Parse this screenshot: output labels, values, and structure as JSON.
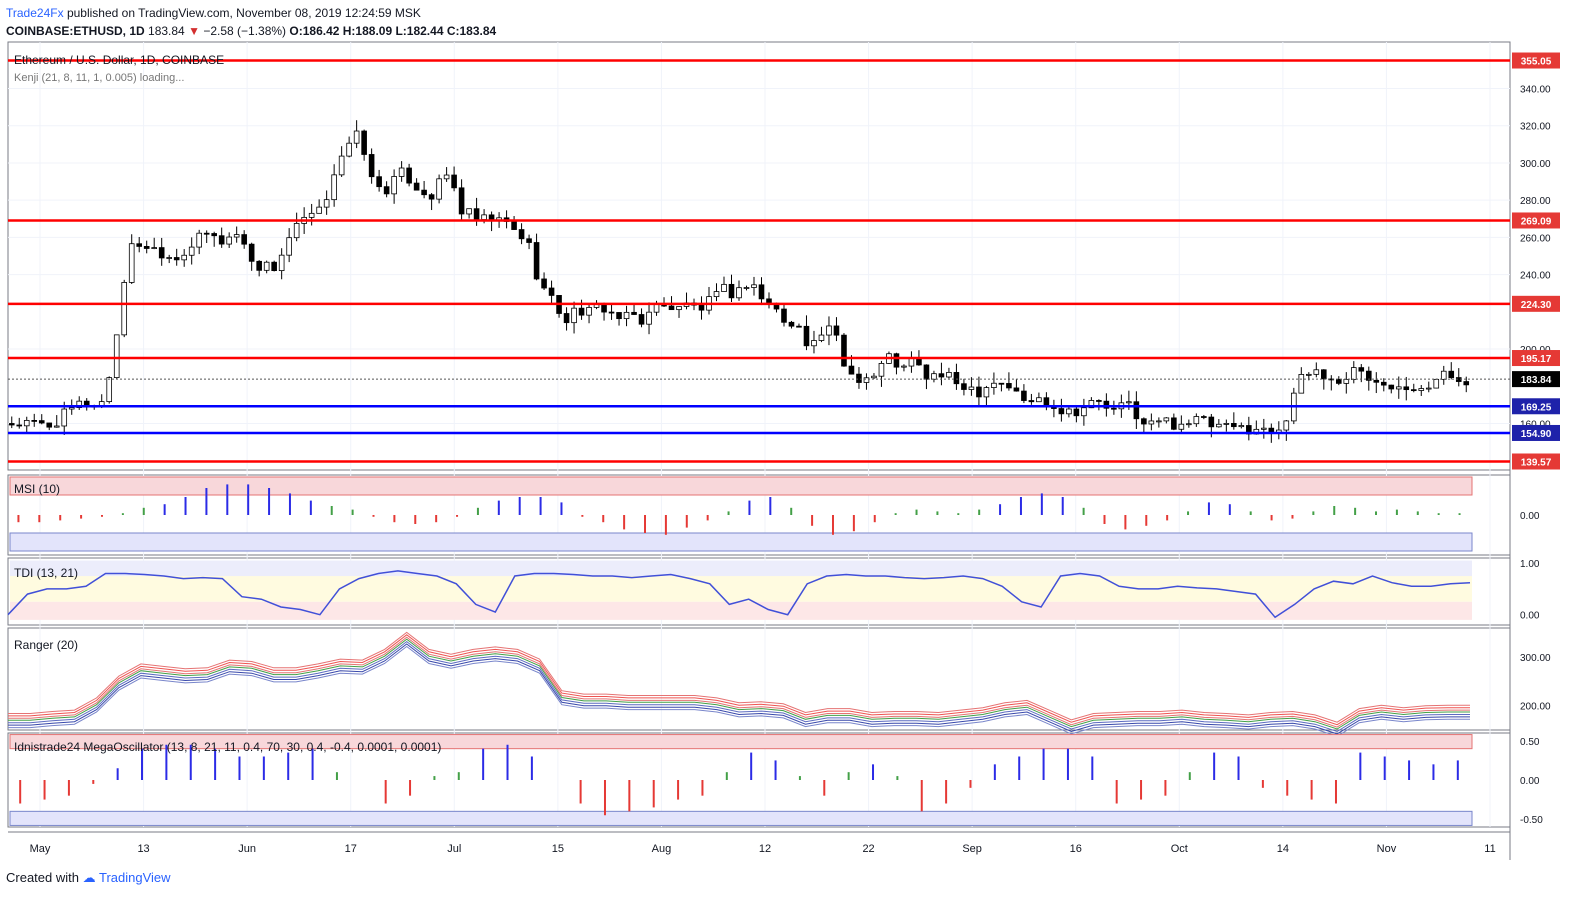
{
  "header": {
    "author": "Trade24Fx",
    "published_text": "published on TradingView.com, November 08, 2019 12:24:59 MSK",
    "symbol_line": "COINBASE:ETHUSD, 1D",
    "last": "183.84",
    "change_arrow": "▼",
    "change": "−2.58 (−1.38%)",
    "ohlc": "O:186.42 H:188.09 L:182.44 C:183.84"
  },
  "footer": {
    "created_with": "Created with",
    "brand": "TradingView"
  },
  "colors": {
    "red_level": "#ff0000",
    "blue_level": "#0000ff",
    "bull": "#ffffff",
    "bear": "#000000"
  },
  "chart_data": [
    {
      "type": "candlestick",
      "title": "Ethereum / U.S. Dollar, 1D, COINBASE",
      "indicator_label": "Kenji (21, 8, 11, 1, 0.005) loading...",
      "x_tick_labels": [
        "May",
        "13",
        "Jun",
        "17",
        "Jul",
        "15",
        "Aug",
        "12",
        "22",
        "Sep",
        "16",
        "Oct",
        "14",
        "Nov",
        "11"
      ],
      "y_tick_labels": [
        "340.00",
        "320.00",
        "300.00",
        "280.00",
        "260.00",
        "240.00",
        "200.00",
        "160.00"
      ],
      "ylim": [
        135,
        365
      ],
      "resistance_levels": [
        "355.05",
        "269.09",
        "224.30",
        "195.17",
        "139.57"
      ],
      "support_levels": [
        "169.25",
        "154.90"
      ],
      "last_price_label": "183.84",
      "close_path": [
        [
          0,
          160
        ],
        [
          10,
          159
        ],
        [
          18,
          171
        ],
        [
          23,
          170
        ],
        [
          26,
          192
        ],
        [
          30,
          253
        ],
        [
          33,
          257
        ],
        [
          38,
          253
        ],
        [
          42,
          249
        ],
        [
          46,
          255
        ],
        [
          50,
          262
        ],
        [
          54,
          258
        ],
        [
          58,
          262
        ],
        [
          63,
          245
        ],
        [
          68,
          244
        ],
        [
          72,
          262
        ],
        [
          76,
          270
        ],
        [
          80,
          274
        ],
        [
          84,
          302
        ],
        [
          88,
          311
        ],
        [
          90,
          318
        ],
        [
          92,
          292
        ],
        [
          96,
          285
        ],
        [
          101,
          295
        ],
        [
          104,
          288
        ],
        [
          108,
          282
        ],
        [
          113,
          296
        ],
        [
          115,
          276
        ],
        [
          121,
          268
        ],
        [
          123,
          270
        ],
        [
          127,
          268
        ],
        [
          133,
          258
        ],
        [
          136,
          236
        ],
        [
          138,
          230
        ],
        [
          141,
          221
        ],
        [
          143,
          216
        ],
        [
          146,
          222
        ],
        [
          149,
          219
        ],
        [
          152,
          224
        ],
        [
          154,
          220
        ],
        [
          158,
          215
        ],
        [
          160,
          220
        ],
        [
          162,
          211
        ],
        [
          165,
          226
        ],
        [
          167,
          221
        ],
        [
          171,
          224
        ],
        [
          175,
          223
        ],
        [
          178,
          222
        ],
        [
          184,
          232
        ],
        [
          187,
          229
        ],
        [
          189,
          236
        ],
        [
          192,
          234
        ],
        [
          194,
          224
        ],
        [
          197,
          223
        ],
        [
          200,
          210
        ],
        [
          203,
          214
        ],
        [
          206,
          200
        ],
        [
          208,
          208
        ],
        [
          212,
          210
        ],
        [
          215,
          189
        ],
        [
          218,
          185
        ],
        [
          222,
          185
        ],
        [
          226,
          196
        ],
        [
          230,
          189
        ],
        [
          232,
          194
        ],
        [
          236,
          185
        ],
        [
          240,
          186
        ],
        [
          244,
          181
        ],
        [
          246,
          181
        ],
        [
          250,
          177
        ],
        [
          252,
          183
        ],
        [
          256,
          182
        ],
        [
          261,
          172
        ],
        [
          266,
          173
        ],
        [
          270,
          168
        ],
        [
          274,
          167
        ],
        [
          280,
          172
        ],
        [
          284,
          166
        ],
        [
          288,
          171
        ],
        [
          290,
          165
        ],
        [
          292,
          158
        ],
        [
          294,
          160
        ],
        [
          296,
          162
        ],
        [
          299,
          160
        ],
        [
          303,
          161
        ],
        [
          306,
          162
        ],
        [
          310,
          158
        ],
        [
          314,
          157
        ],
        [
          320,
          158
        ],
        [
          324,
          155
        ],
        [
          328,
          160
        ],
        [
          331,
          180
        ],
        [
          336,
          190
        ],
        [
          338,
          184
        ],
        [
          340,
          186
        ],
        [
          342,
          180
        ],
        [
          346,
          191
        ],
        [
          350,
          182
        ],
        [
          353,
          184
        ],
        [
          357,
          181
        ],
        [
          361,
          181
        ],
        [
          366,
          181
        ],
        [
          369,
          186
        ],
        [
          372,
          185
        ],
        [
          375,
          184
        ]
      ]
    },
    {
      "type": "bar",
      "title": "MSI (10)",
      "y_tick_labels": [
        "0.00"
      ],
      "ylim": [
        -1,
        1
      ],
      "values": [
        -0.2,
        -0.2,
        -0.15,
        -0.1,
        -0.05,
        0.05,
        0.2,
        0.3,
        0.5,
        0.75,
        0.85,
        0.85,
        0.75,
        0.6,
        0.4,
        0.25,
        0.15,
        -0.05,
        -0.2,
        -0.25,
        -0.2,
        -0.05,
        0.2,
        0.4,
        0.5,
        0.5,
        0.35,
        -0.05,
        -0.2,
        -0.4,
        -0.5,
        -0.55,
        -0.35,
        -0.15,
        0.1,
        0.4,
        0.5,
        0.2,
        -0.3,
        -0.55,
        -0.45,
        -0.2,
        0.05,
        0.15,
        0.1,
        0.05,
        0.15,
        0.3,
        0.5,
        0.6,
        0.5,
        0.2,
        -0.25,
        -0.4,
        -0.3,
        -0.15,
        0.1,
        0.35,
        0.3,
        0.1,
        -0.15,
        -0.1,
        0.1,
        0.25,
        0.2,
        0.1,
        0.15,
        0.1,
        0.05,
        0.05
      ]
    },
    {
      "type": "line",
      "title": "TDI (13, 21)",
      "y_tick_labels": [
        "1.00",
        "0.00"
      ],
      "ylim": [
        -0.2,
        1.1
      ],
      "values": [
        0.0,
        0.4,
        0.5,
        0.5,
        0.55,
        0.8,
        0.8,
        0.78,
        0.75,
        0.7,
        0.72,
        0.7,
        0.35,
        0.3,
        0.15,
        0.1,
        0.0,
        0.5,
        0.7,
        0.8,
        0.85,
        0.8,
        0.75,
        0.6,
        0.2,
        0.05,
        0.75,
        0.8,
        0.8,
        0.78,
        0.75,
        0.75,
        0.72,
        0.75,
        0.78,
        0.7,
        0.6,
        0.2,
        0.3,
        0.1,
        0.0,
        0.6,
        0.75,
        0.78,
        0.75,
        0.75,
        0.72,
        0.7,
        0.72,
        0.75,
        0.7,
        0.55,
        0.25,
        0.15,
        0.75,
        0.8,
        0.75,
        0.55,
        0.5,
        0.5,
        0.55,
        0.52,
        0.5,
        0.45,
        0.4,
        -0.05,
        0.2,
        0.5,
        0.65,
        0.6,
        0.75,
        0.62,
        0.55,
        0.55,
        0.6,
        0.62
      ]
    },
    {
      "type": "line",
      "title": "Ranger (20)",
      "y_tick_labels": [
        "300.00",
        "200.00"
      ],
      "ylim": [
        150,
        360
      ],
      "values": [
        168,
        168,
        172,
        175,
        200,
        245,
        270,
        265,
        260,
        262,
        278,
        275,
        262,
        262,
        270,
        280,
        278,
        300,
        335,
        300,
        290,
        300,
        305,
        300,
        280,
        215,
        208,
        208,
        205,
        205,
        205,
        205,
        200,
        190,
        192,
        188,
        170,
        178,
        178,
        170,
        172,
        172,
        170,
        175,
        180,
        190,
        195,
        175,
        155,
        168,
        170,
        172,
        172,
        175,
        170,
        168,
        165,
        170,
        172,
        165,
        150,
        178,
        185,
        180,
        184,
        185,
        185
      ]
    },
    {
      "type": "bar",
      "title": "Idnistrade24 MegaOscillator (13, 8, 21, 11, 0.4, 70, 30, 0.4, -0.4, 0.0001, 0.0001)",
      "y_tick_labels": [
        "0.50",
        "0.00",
        "-0.50"
      ],
      "ylim": [
        -0.6,
        0.6
      ],
      "values": [
        -0.3,
        -0.25,
        -0.2,
        -0.05,
        0.15,
        0.4,
        0.45,
        0.45,
        0.4,
        0.3,
        0.3,
        0.35,
        0.4,
        0.1,
        0.0,
        -0.3,
        -0.2,
        0.05,
        0.1,
        0.4,
        0.45,
        0.3,
        0.0,
        -0.3,
        -0.45,
        -0.4,
        -0.35,
        -0.25,
        -0.2,
        0.1,
        0.35,
        0.25,
        0.05,
        -0.2,
        0.1,
        0.2,
        0.05,
        -0.4,
        -0.3,
        -0.1,
        0.2,
        0.3,
        0.4,
        0.4,
        0.3,
        -0.3,
        -0.25,
        -0.2,
        0.1,
        0.35,
        0.3,
        -0.1,
        -0.2,
        -0.25,
        -0.3,
        0.35,
        0.3,
        0.25,
        0.2,
        0.25
      ]
    }
  ]
}
